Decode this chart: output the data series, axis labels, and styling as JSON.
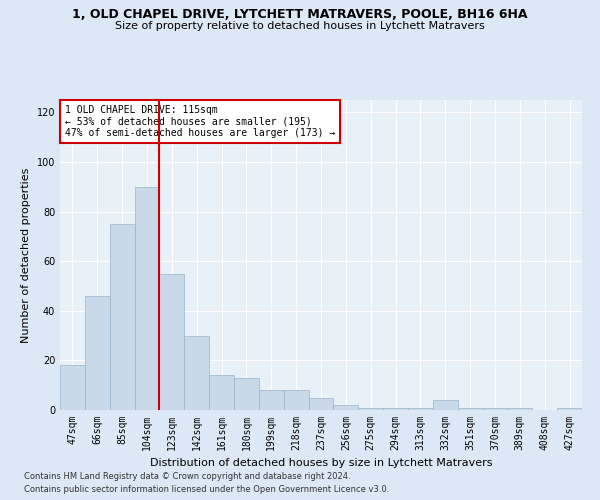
{
  "title1": "1, OLD CHAPEL DRIVE, LYTCHETT MATRAVERS, POOLE, BH16 6HA",
  "title2": "Size of property relative to detached houses in Lytchett Matravers",
  "xlabel": "Distribution of detached houses by size in Lytchett Matravers",
  "ylabel": "Number of detached properties",
  "footer1": "Contains HM Land Registry data © Crown copyright and database right 2024.",
  "footer2": "Contains public sector information licensed under the Open Government Licence v3.0.",
  "bar_labels": [
    "47sqm",
    "66sqm",
    "85sqm",
    "104sqm",
    "123sqm",
    "142sqm",
    "161sqm",
    "180sqm",
    "199sqm",
    "218sqm",
    "237sqm",
    "256sqm",
    "275sqm",
    "294sqm",
    "313sqm",
    "332sqm",
    "351sqm",
    "370sqm",
    "389sqm",
    "408sqm",
    "427sqm"
  ],
  "bar_values": [
    18,
    46,
    75,
    90,
    55,
    30,
    14,
    13,
    8,
    8,
    5,
    2,
    1,
    1,
    1,
    4,
    1,
    1,
    1,
    0,
    1
  ],
  "bar_color": "#c9d9ea",
  "bar_edge_color": "#9ab4cc",
  "vline_x": 3.5,
  "annotation_text1": "1 OLD CHAPEL DRIVE: 115sqm",
  "annotation_text2": "← 53% of detached houses are smaller (195)",
  "annotation_text3": "47% of semi-detached houses are larger (173) →",
  "vline_color": "#cc0000",
  "annotation_box_edge": "#cc0000",
  "ylim": [
    0,
    125
  ],
  "yticks": [
    0,
    20,
    40,
    60,
    80,
    100,
    120
  ],
  "bg_color": "#dce8f5",
  "plot_bg_color": "#e8f0f8",
  "grid_color": "#ffffff",
  "title1_fontsize": 9,
  "title2_fontsize": 8,
  "ylabel_fontsize": 8,
  "xlabel_fontsize": 8,
  "tick_fontsize": 7,
  "footer_fontsize": 6
}
